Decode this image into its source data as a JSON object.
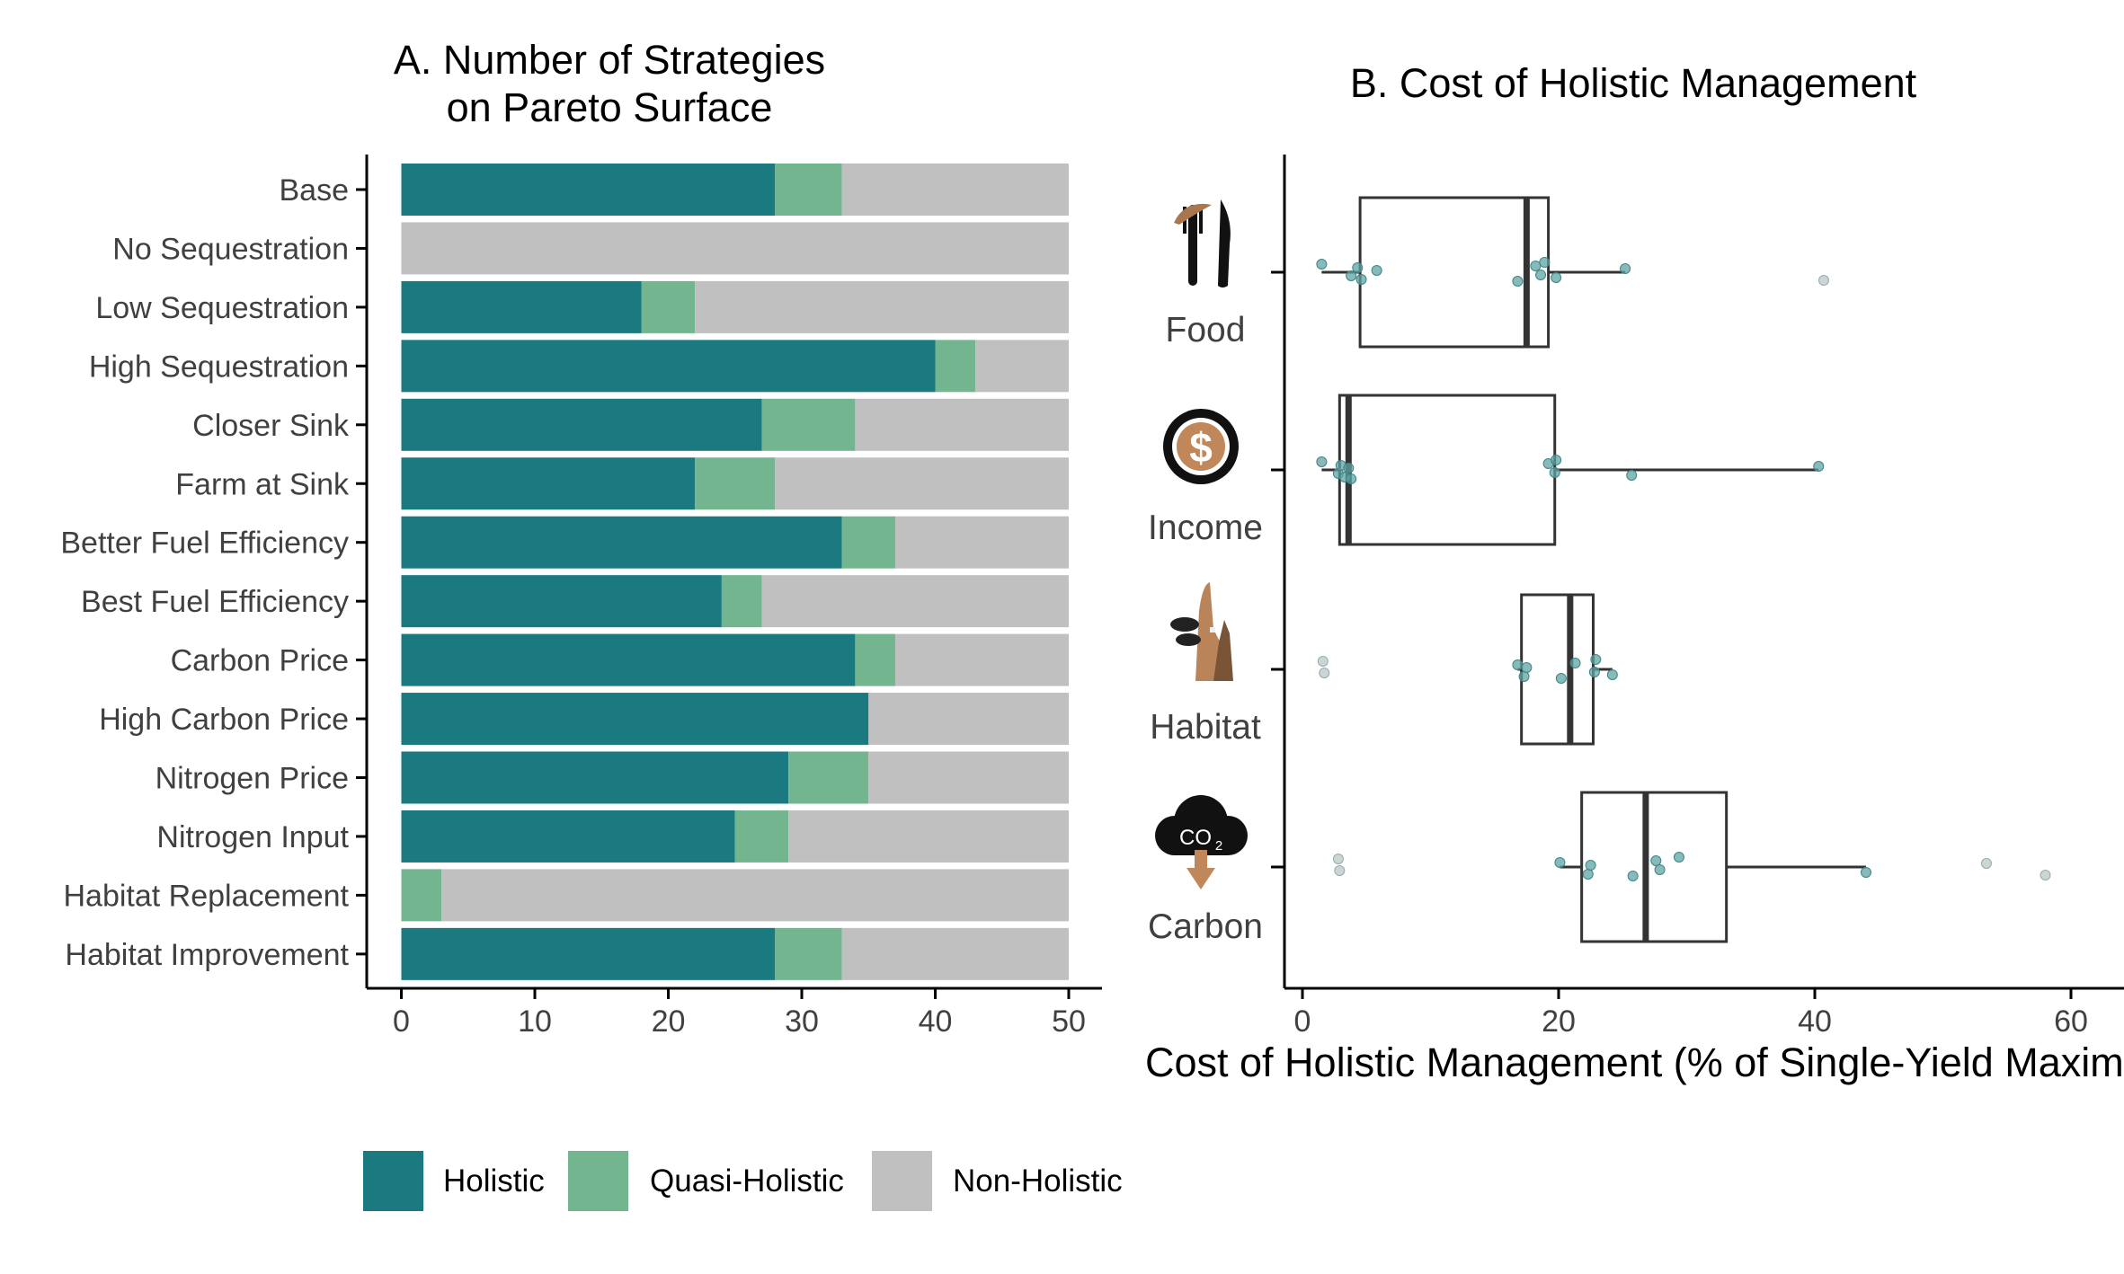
{
  "chart_data": [
    {
      "type": "bar",
      "stacked": true,
      "orientation": "horizontal",
      "title_line1": "A. Number of Strategies",
      "title_line2": "on Pareto Surface",
      "categories": [
        "Base",
        "No Sequestration",
        "Low Sequestration",
        "High Sequestration",
        "Closer Sink",
        "Farm at Sink",
        "Better Fuel Efficiency",
        "Best Fuel Efficiency",
        "Carbon Price",
        "High Carbon Price",
        "Nitrogen Price",
        "Nitrogen Input",
        "Habitat Replacement",
        "Habitat Improvement"
      ],
      "series": [
        {
          "name": "Holistic",
          "color": "#1a7a80",
          "values": [
            28,
            0,
            18,
            40,
            27,
            22,
            33,
            24,
            34,
            35,
            29,
            25,
            0,
            28
          ]
        },
        {
          "name": "Quasi-Holistic",
          "color": "#72b58f",
          "values": [
            5,
            0,
            4,
            3,
            7,
            6,
            4,
            3,
            3,
            0,
            6,
            4,
            3,
            5
          ]
        },
        {
          "name": "Non-Holistic",
          "color": "#c0c0c0",
          "values": [
            17,
            50,
            28,
            7,
            16,
            22,
            13,
            23,
            13,
            15,
            15,
            21,
            47,
            17
          ]
        }
      ],
      "xlim": [
        0,
        50
      ],
      "xticks": [
        "0",
        "10",
        "20",
        "30",
        "40",
        "50"
      ],
      "legend": "bottom"
    },
    {
      "type": "box",
      "orientation": "horizontal",
      "title": "B. Cost of Holistic Management",
      "xlabel": "Cost of Holistic Management (% of Single-Yield Maxim",
      "xlim": [
        -1.5,
        60
      ],
      "xticks": [
        "0",
        "20",
        "40",
        "60"
      ],
      "categories": [
        "Food",
        "Income",
        "Habitat",
        "Carbon"
      ],
      "boxes": [
        {
          "name": "Food",
          "icon": "fork-knife-icon",
          "q1": 4.5,
          "median": 17.5,
          "q3": 19.2,
          "whisker_low": 1.5,
          "whisker_high": 25.2,
          "points": [
            1.5,
            3.8,
            4.3,
            4.6,
            5.8,
            16.8,
            18.2,
            18.6,
            18.9,
            19.8,
            25.2,
            40.7
          ]
        },
        {
          "name": "Income",
          "icon": "dollar-coin-icon",
          "q1": 2.9,
          "median": 3.6,
          "q3": 19.7,
          "whisker_low": 1.5,
          "whisker_high": 40.3,
          "points": [
            1.5,
            2.8,
            3.0,
            3.3,
            3.6,
            3.8,
            19.2,
            19.7,
            19.8,
            25.7,
            40.3
          ]
        },
        {
          "name": "Habitat",
          "icon": "animals-icon",
          "q1": 17.1,
          "median": 20.9,
          "q3": 22.7,
          "whisker_low": 16.8,
          "whisker_high": 24.2,
          "points": [
            1.6,
            1.7,
            16.8,
            17.3,
            17.5,
            20.2,
            21.3,
            22.8,
            22.9,
            24.2
          ]
        },
        {
          "name": "Carbon",
          "icon": "co2-cloud-icon",
          "co2_label": "CO",
          "co2_sub": "2",
          "q1": 21.8,
          "median": 26.8,
          "q3": 33.1,
          "whisker_low": 20.1,
          "whisker_high": 44.0,
          "points": [
            2.8,
            2.9,
            20.1,
            22.3,
            22.5,
            25.8,
            27.6,
            27.9,
            29.4,
            44.0,
            53.4,
            58.0
          ]
        }
      ]
    }
  ]
}
